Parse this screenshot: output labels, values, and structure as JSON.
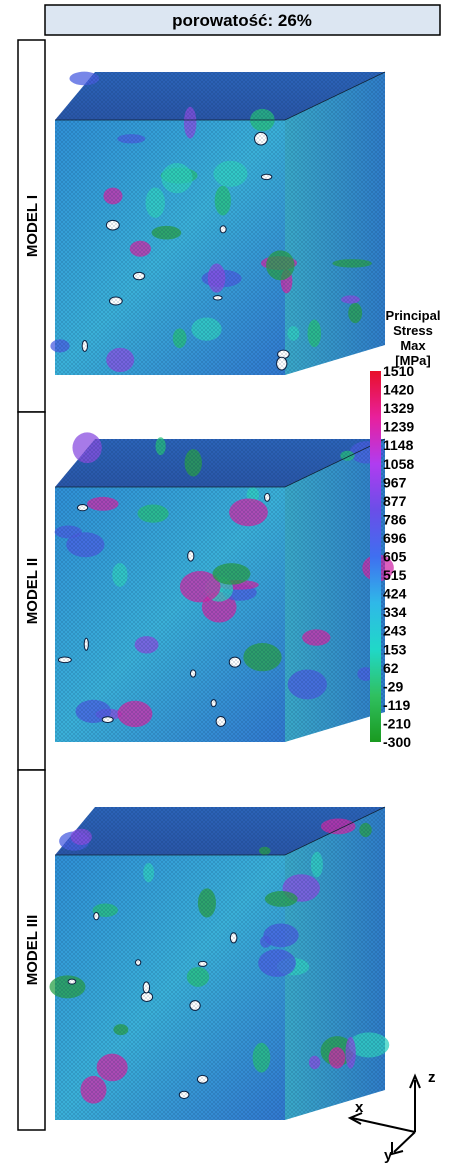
{
  "header": {
    "title": "porowatość: 26%"
  },
  "models": [
    {
      "label": "MODEL I"
    },
    {
      "label": "MODEL II"
    },
    {
      "label": "MODEL III"
    }
  ],
  "colorbar": {
    "title": [
      "Principal",
      "Stress",
      "Max",
      "[MPa]"
    ],
    "ticks": [
      1510,
      1420,
      1329,
      1239,
      1148,
      1058,
      967,
      877,
      786,
      696,
      605,
      515,
      424,
      334,
      243,
      153,
      62,
      -29,
      -119,
      -210,
      -300
    ],
    "colors": [
      "#e8102a",
      "#e8209c",
      "#b03cf0",
      "#6a4ee8",
      "#3f6ff0",
      "#2fb8e8",
      "#20d8c8",
      "#30c060",
      "#1a9a20"
    ]
  },
  "axes": {
    "z": "z",
    "x": "x",
    "y": "y"
  }
}
